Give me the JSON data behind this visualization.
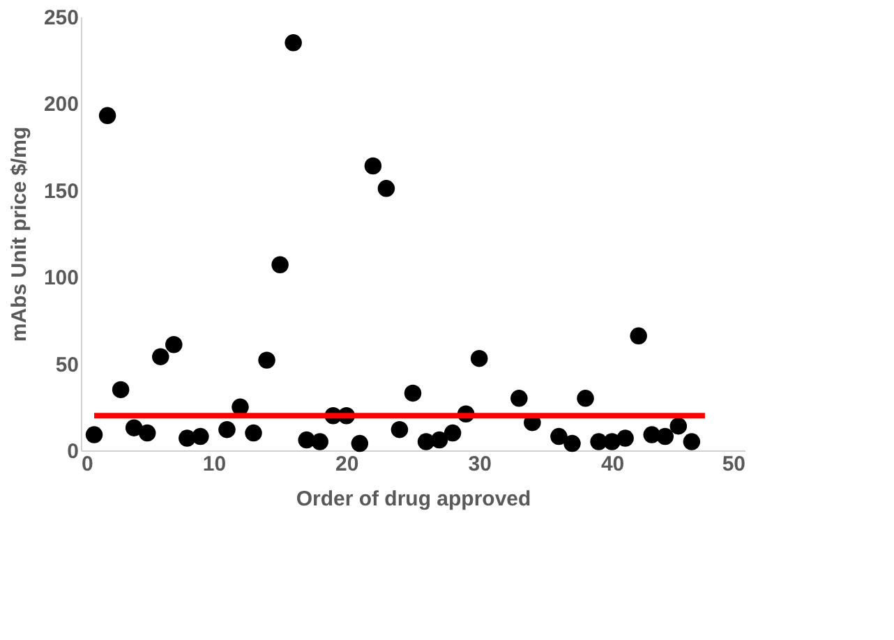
{
  "chart_data": {
    "type": "scatter",
    "xlabel": "Order of drug approved",
    "ylabel": "mAbs Unit price  $/mg",
    "xlim": [
      0,
      50
    ],
    "xticks": [
      0,
      10,
      20,
      30,
      40,
      50
    ],
    "ylim": [
      0,
      250
    ],
    "yticks": [
      0,
      50,
      100,
      150,
      200,
      250
    ],
    "grid": false,
    "marker": "circle",
    "series": [
      {
        "color": "#000000",
        "x": [
          1,
          2,
          3,
          4,
          5,
          6,
          7,
          8,
          9,
          11,
          12,
          13,
          14,
          15,
          16,
          17,
          18,
          19,
          20,
          21,
          22,
          23,
          24,
          25,
          26,
          27,
          28,
          29,
          30,
          33,
          34,
          36,
          37,
          38,
          39,
          40,
          41,
          42,
          43,
          44,
          45,
          46
        ],
        "values": [
          9,
          193,
          35,
          13,
          10,
          54,
          61,
          7,
          8,
          12,
          25,
          10,
          52,
          107,
          235,
          6,
          5,
          20,
          20,
          4,
          164,
          151,
          12,
          33,
          5,
          6,
          10,
          21,
          53,
          30,
          16,
          8,
          4,
          30,
          5,
          5,
          7,
          66,
          9,
          8,
          14,
          5
        ]
      },
      {
        "type": "line",
        "color": "#ff0000",
        "marker": "none",
        "line_style": "solid",
        "x": [
          1,
          47
        ],
        "values": [
          20,
          20
        ]
      }
    ]
  }
}
